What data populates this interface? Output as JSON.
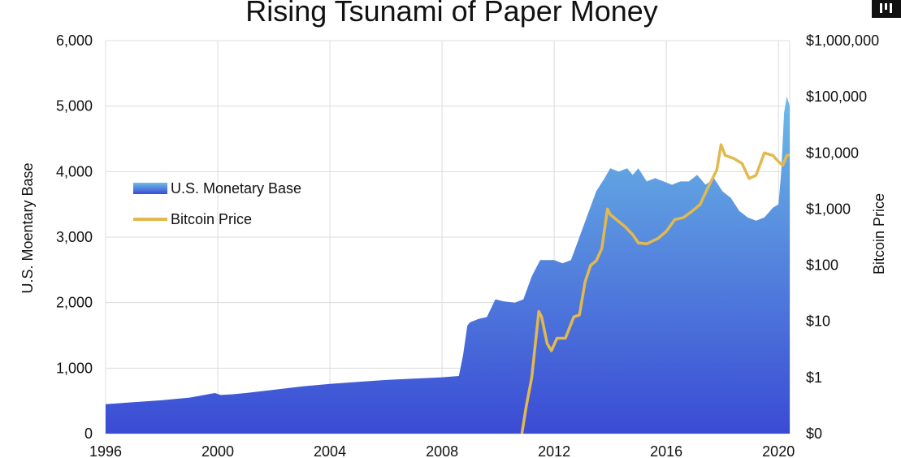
{
  "chart_data": {
    "type": "area",
    "title": "Rising Tsunami of Paper Money",
    "ylabel": "U.S. Moentary Base",
    "y2label": "Bitcoin Price",
    "xlim": [
      1996,
      2020.4
    ],
    "ylim": [
      0,
      6000
    ],
    "y2_scale": "log",
    "grid": true,
    "legend_position": "left-middle",
    "x_ticks": [
      "1996",
      "2000",
      "2004",
      "2008",
      "2012",
      "2016",
      "2020"
    ],
    "x_tick_values": [
      1996,
      2000,
      2004,
      2008,
      2012,
      2016,
      2020
    ],
    "y_ticks": [
      "0",
      "1,000",
      "2,000",
      "3,000",
      "4,000",
      "5,000",
      "6,000"
    ],
    "y_tick_values": [
      0,
      1000,
      2000,
      3000,
      4000,
      5000,
      6000
    ],
    "y2_ticks": [
      "$0",
      "$1",
      "$10",
      "$100",
      "$1,000",
      "$10,000",
      "$100,000",
      "$1,000,000"
    ],
    "y2_tick_values": [
      0.1,
      1,
      10,
      100,
      1000,
      10000,
      100000,
      1000000
    ],
    "series": [
      {
        "name": "U.S. Monetary Base",
        "kind": "area",
        "color_top": "#6cbbe6",
        "color_bottom": "#3a4bd4",
        "x": [
          1996,
          1997,
          1998,
          1999,
          1999.9,
          2000.1,
          2000.5,
          2001,
          2002,
          2003,
          2004,
          2005,
          2006,
          2007,
          2008,
          2008.6,
          2008.75,
          2008.9,
          2009.0,
          2009.3,
          2009.6,
          2009.9,
          2010.2,
          2010.6,
          2010.9,
          2011.2,
          2011.5,
          2011.8,
          2012.0,
          2012.3,
          2012.6,
          2012.9,
          2013.2,
          2013.5,
          2013.8,
          2014.0,
          2014.3,
          2014.6,
          2014.8,
          2015.0,
          2015.3,
          2015.6,
          2015.9,
          2016.2,
          2016.5,
          2016.8,
          2017.1,
          2017.4,
          2017.7,
          2018.0,
          2018.3,
          2018.6,
          2018.9,
          2019.2,
          2019.5,
          2019.8,
          2020.0,
          2020.1,
          2020.2,
          2020.3,
          2020.4
        ],
        "values": [
          450,
          480,
          510,
          550,
          620,
          590,
          600,
          620,
          670,
          720,
          760,
          790,
          820,
          840,
          860,
          880,
          1200,
          1650,
          1700,
          1750,
          1780,
          2050,
          2020,
          2000,
          2050,
          2400,
          2650,
          2650,
          2650,
          2600,
          2650,
          3000,
          3350,
          3700,
          3900,
          4050,
          4000,
          4050,
          3950,
          4050,
          3850,
          3900,
          3850,
          3800,
          3850,
          3850,
          3950,
          3800,
          3900,
          3700,
          3600,
          3400,
          3300,
          3250,
          3300,
          3450,
          3500,
          4000,
          4900,
          5150,
          5000
        ]
      },
      {
        "name": "Bitcoin Price",
        "kind": "line",
        "color": "#e2b94e",
        "x": [
          2010.85,
          2011.0,
          2011.2,
          2011.45,
          2011.55,
          2011.75,
          2011.9,
          2012.1,
          2012.4,
          2012.7,
          2012.9,
          2013.1,
          2013.3,
          2013.5,
          2013.7,
          2013.9,
          2014.0,
          2014.3,
          2014.5,
          2014.8,
          2015.0,
          2015.3,
          2015.7,
          2016.0,
          2016.3,
          2016.6,
          2016.9,
          2017.2,
          2017.5,
          2017.8,
          2017.95,
          2018.1,
          2018.4,
          2018.7,
          2018.95,
          2019.2,
          2019.5,
          2019.8,
          2020.0,
          2020.15,
          2020.3,
          2020.4
        ],
        "values": [
          0.1,
          0.3,
          1,
          15,
          12,
          4,
          3,
          5,
          5,
          12,
          13,
          50,
          100,
          120,
          200,
          1000,
          800,
          600,
          500,
          350,
          250,
          240,
          300,
          400,
          650,
          700,
          900,
          1200,
          2500,
          5000,
          14000,
          9000,
          8000,
          6500,
          3500,
          4000,
          10000,
          9000,
          7000,
          6000,
          9000,
          9200
        ]
      }
    ]
  }
}
